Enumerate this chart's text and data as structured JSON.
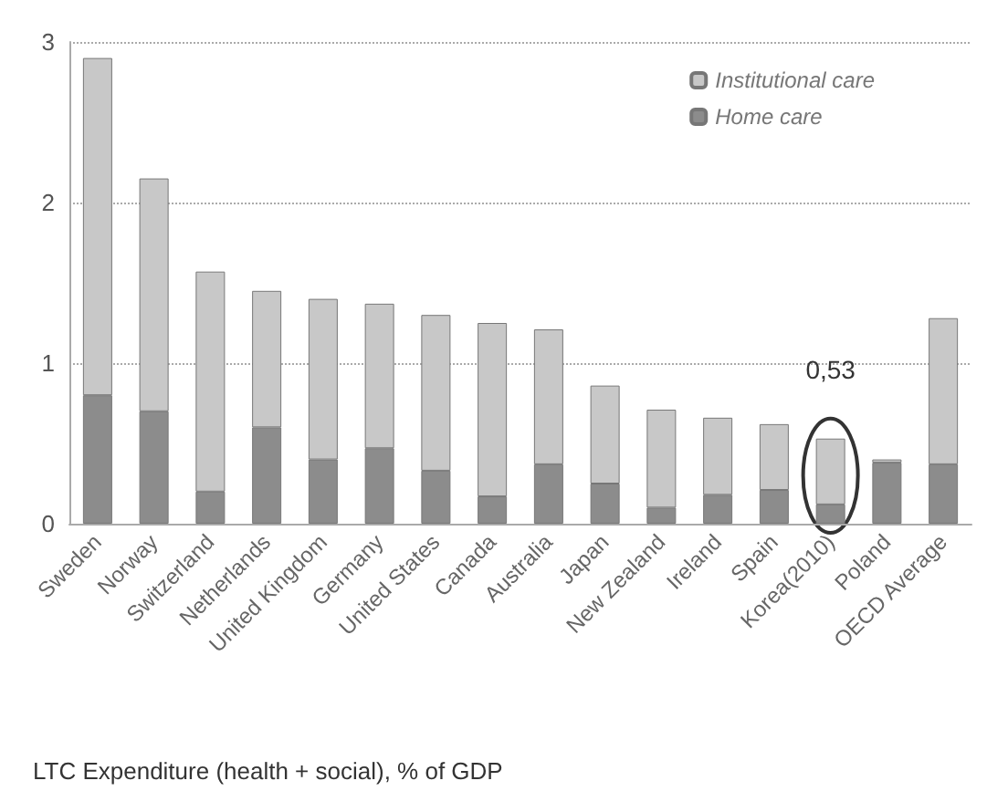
{
  "chart_data": {
    "type": "bar",
    "stacked": true,
    "categories": [
      "Sweden",
      "Norway",
      "Switzerland",
      "Netherlands",
      "United Kingdom",
      "Germany",
      "United States",
      "Canada",
      "Australia",
      "Japan",
      "New Zealand",
      "Ireland",
      "Spain",
      "Korea(2010)",
      "Poland",
      "OECD Average"
    ],
    "series": [
      {
        "name": "Home care",
        "color": "#8c8c8c",
        "values": [
          0.8,
          0.7,
          0.2,
          0.6,
          0.4,
          0.47,
          0.33,
          0.17,
          0.37,
          0.25,
          0.1,
          0.18,
          0.21,
          0.12,
          0.38,
          0.37
        ]
      },
      {
        "name": "Institutional care",
        "color": "#c8c8c8",
        "values": [
          2.1,
          1.45,
          1.37,
          0.85,
          1.0,
          0.9,
          0.97,
          1.08,
          0.84,
          0.61,
          0.61,
          0.48,
          0.41,
          0.41,
          0.02,
          0.91
        ]
      }
    ],
    "ylim": [
      0,
      3
    ],
    "yticks": [
      0,
      1,
      2,
      3
    ],
    "grid": "y",
    "legend": "top right",
    "annotations": [
      {
        "text": "0,53",
        "x": "Korea(2010)",
        "y": 0.53
      },
      "LTC Expenditure (health + social), % of GDP"
    ]
  }
}
